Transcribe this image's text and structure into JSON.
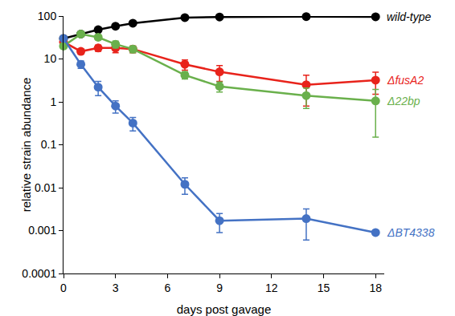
{
  "chart_data": {
    "type": "line",
    "x_label": "days post gavage",
    "y_label": "relative strain abundance",
    "log": "y",
    "grid": false,
    "marker": "circle",
    "xlim": [
      0,
      18.5
    ],
    "xticks": [
      0,
      3,
      6,
      9,
      12,
      15,
      18
    ],
    "ylim": [
      0.0001,
      100
    ],
    "yticks": [
      0.0001,
      0.001,
      0.01,
      0.1,
      1,
      10,
      100
    ],
    "x": [
      0,
      1,
      2,
      3,
      4,
      7,
      9,
      14,
      18
    ],
    "series": [
      {
        "name": "wild-type",
        "color": "#000000",
        "values": [
          30,
          38,
          48,
          58,
          68,
          92,
          95,
          97,
          96
        ],
        "errors": [
          3,
          3,
          4,
          5,
          5,
          4,
          4,
          4,
          4
        ]
      },
      {
        "name": "ΔfusA2",
        "color": "#e8231b",
        "values": [
          25,
          15,
          18,
          18,
          17,
          7.5,
          5,
          2.5,
          3.2
        ],
        "errors": [
          3,
          2,
          3,
          4,
          3,
          2,
          2,
          1.7,
          1.7
        ]
      },
      {
        "name": "Δ22bp",
        "color": "#6ab04c",
        "values": [
          20,
          38,
          32,
          22,
          17,
          4.2,
          2.3,
          1.4,
          1.05
        ],
        "errors": [
          2,
          4,
          4,
          4,
          3,
          0.8,
          0.6,
          0.7,
          0.9
        ]
      },
      {
        "name": "ΔBT4338",
        "color": "#4472c4",
        "values": [
          30,
          7.5,
          2.2,
          0.8,
          0.32,
          0.012,
          0.0017,
          0.0019,
          0.0009
        ],
        "errors": [
          3,
          1.5,
          0.8,
          0.25,
          0.11,
          0.005,
          0.0008,
          0.0013,
          0.0001
        ]
      }
    ]
  }
}
